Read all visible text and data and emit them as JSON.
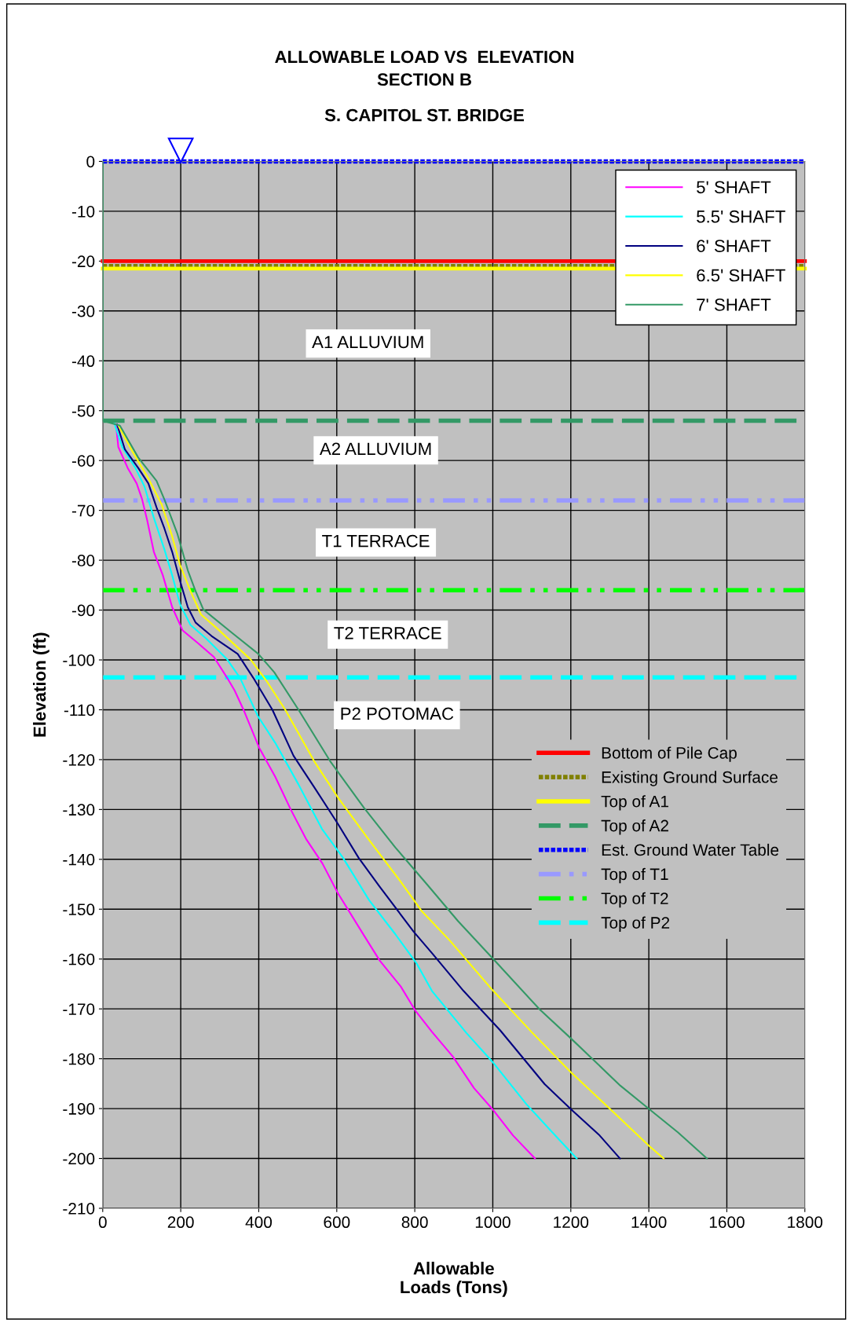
{
  "chart_data": {
    "type": "line",
    "title": "ALLOWABLE LOAD VS  ELEVATION\nSECTION B",
    "subtitle": "S. CAPITOL ST. BRIDGE",
    "xlabel": "Allowable\nLoads (Tons)",
    "ylabel": "Elevation (ft)",
    "xlim": [
      0,
      1800
    ],
    "xticks": [
      0,
      200,
      400,
      600,
      800,
      1000,
      1200,
      1400,
      1600,
      1800
    ],
    "ylim": [
      -210,
      0
    ],
    "yticks": [
      0,
      -10,
      -20,
      -30,
      -40,
      -50,
      -60,
      -70,
      -80,
      -90,
      -100,
      -110,
      -120,
      -130,
      -140,
      -150,
      -160,
      -170,
      -180,
      -190,
      -200,
      -210
    ],
    "grid": true,
    "legend": "top right",
    "marker": "none",
    "line_style": "solid",
    "series": [
      {
        "name": "5' SHAFT",
        "color": "#ff00ff",
        "x": [
          34,
          40,
          64,
          87,
          101,
          114,
          131,
          154,
          178,
          205,
          245,
          285,
          319,
          338,
          361,
          401,
          442,
          482,
          522,
          563,
          603,
          670,
          710,
          764,
          801,
          844,
          898,
          952,
          999,
          1052,
          1108
        ],
        "values": [
          -52.8,
          -57.3,
          -61.5,
          -64.6,
          -67.8,
          -72,
          -78.3,
          -83,
          -89.4,
          -94.1,
          -96.7,
          -99.4,
          -103.6,
          -106.1,
          -110,
          -117.6,
          -123.4,
          -130,
          -136,
          -140.8,
          -146.8,
          -155.3,
          -160.3,
          -165.5,
          -170.3,
          -174.6,
          -179.6,
          -185.9,
          -190.1,
          -195.4,
          -200
        ]
      },
      {
        "name": "5.5' SHAFT",
        "color": "#00ffff",
        "x": [
          30,
          50,
          84,
          107,
          131,
          158,
          178,
          198,
          225,
          265,
          319,
          352,
          398,
          442,
          502,
          562,
          616,
          683,
          750,
          804,
          844,
          932,
          999,
          1086,
          1153,
          1215
        ],
        "values": [
          -52.6,
          -57.3,
          -61.5,
          -65.2,
          -71.5,
          -77.8,
          -83,
          -88.8,
          -93,
          -95.7,
          -99.9,
          -103.6,
          -111.3,
          -116.6,
          -125,
          -133.9,
          -139.7,
          -148.2,
          -155,
          -160.8,
          -166.4,
          -174.8,
          -180.6,
          -189.1,
          -194.8,
          -200
        ]
      },
      {
        "name": "6' SHAFT",
        "color": "#000080",
        "x": [
          37,
          57,
          91,
          117,
          138,
          158,
          178,
          198,
          218,
          238,
          279,
          346,
          386,
          435,
          489,
          542,
          603,
          656,
          710,
          797,
          844,
          925,
          1019,
          1133,
          1200,
          1274,
          1326
        ],
        "values": [
          -52.8,
          -57.8,
          -61.5,
          -64.6,
          -69.4,
          -73.6,
          -78.3,
          -84.1,
          -89.4,
          -92.5,
          -95.2,
          -98.8,
          -103.6,
          -110,
          -119.2,
          -125.5,
          -132.9,
          -139.7,
          -145.5,
          -154.5,
          -158.8,
          -166.4,
          -174.3,
          -185.1,
          -190.1,
          -195.4,
          -200
        ]
      },
      {
        "name": "6.5' SHAFT",
        "color": "#ffff00",
        "x": [
          40,
          77,
          117,
          151,
          178,
          198,
          225,
          252,
          292,
          379,
          419,
          468,
          542,
          603,
          677,
          764,
          817,
          891,
          999,
          1099,
          1200,
          1301,
          1401,
          1438
        ],
        "values": [
          -53,
          -58.3,
          -63.6,
          -68.8,
          -75.2,
          -80.9,
          -86.2,
          -90.9,
          -93.6,
          -99.9,
          -104.1,
          -110,
          -120.3,
          -127.6,
          -135.5,
          -144.5,
          -150.3,
          -156.4,
          -166.2,
          -174.6,
          -182.7,
          -190.1,
          -197.5,
          -200
        ]
      },
      {
        "name": "7' SHAFT",
        "color": "#339966",
        "x": [
          0,
          0,
          44,
          91,
          138,
          158,
          191,
          218,
          238,
          258,
          332,
          399,
          440,
          502,
          583,
          670,
          750,
          831,
          911,
          999,
          1120,
          1200,
          1327,
          1401,
          1475,
          1549
        ],
        "values": [
          0,
          -52,
          -53,
          -59.4,
          -64.1,
          -67.8,
          -74.6,
          -82,
          -86.2,
          -89.9,
          -94.6,
          -98.8,
          -102.5,
          -110,
          -120.3,
          -129.7,
          -137.6,
          -145,
          -152.4,
          -159.8,
          -170.1,
          -175.9,
          -185.4,
          -190.1,
          -194.8,
          -200
        ]
      }
    ],
    "ref_lines": [
      {
        "axis": "y",
        "value": -20,
        "label": "Bottom of Pile Cap",
        "color": "#ff0000",
        "line_style": "solid"
      },
      {
        "axis": "y",
        "value": -21,
        "label": "Existing Ground Surface",
        "color": "#808000",
        "line_style": "dotted"
      },
      {
        "axis": "y",
        "value": -21.5,
        "label": "Top of A1",
        "color": "#ffff00",
        "line_style": "solid"
      },
      {
        "axis": "y",
        "value": -52,
        "label": "Top of A2",
        "color": "#339966",
        "line_style": "dashed"
      },
      {
        "axis": "y",
        "value": 0,
        "label": "Est. Ground Water Table",
        "color": "#0000ff",
        "line_style": "dotted"
      },
      {
        "axis": "y",
        "value": -68,
        "label": "Top of T1",
        "color": "#9999ff",
        "line_style": "dashdot"
      },
      {
        "axis": "y",
        "value": -86,
        "label": "Top of T2",
        "color": "#00ff00",
        "line_style": "dashdot"
      },
      {
        "axis": "y",
        "value": -103.5,
        "label": "Top of P2",
        "color": "#00ffff",
        "line_style": "dashed"
      }
    ],
    "annotations": [
      "A1 ALLUVIUM",
      "A2 ALLUVIUM",
      "T1 TERRACE",
      "T2 TERRACE",
      "P2 POTOMAC"
    ]
  }
}
